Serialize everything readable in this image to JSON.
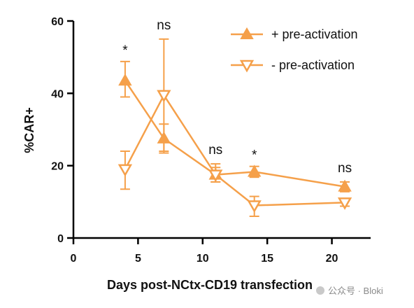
{
  "chart_data": {
    "type": "line",
    "xlabel": "Days post-NCtx-CD19 transfection",
    "ylabel": "%CAR+",
    "xlim": [
      0,
      23
    ],
    "ylim": [
      0,
      60
    ],
    "x_ticks": [
      0,
      5,
      10,
      15,
      20
    ],
    "y_ticks": [
      0,
      20,
      40,
      60
    ],
    "legend_position": "top-right",
    "color": "#F5A04A",
    "series": [
      {
        "name": "+ pre-activation",
        "marker": "triangle-up-filled",
        "x": [
          4,
          7,
          11,
          14,
          21
        ],
        "y": [
          43.5,
          27.5,
          17.5,
          18.3,
          14.2
        ],
        "err_low": [
          39,
          23.5,
          15.5,
          16.8,
          12.8
        ],
        "err_high": [
          48.8,
          31.5,
          20.5,
          19.8,
          15.5
        ]
      },
      {
        "name": "- pre-activation",
        "marker": "triangle-down-open",
        "x": [
          4,
          7,
          11,
          14,
          21
        ],
        "y": [
          19,
          39.5,
          17.5,
          9,
          9.8
        ],
        "err_low": [
          13.5,
          24,
          15.5,
          6,
          8.8
        ],
        "err_high": [
          24,
          55,
          19.5,
          11.5,
          10.8
        ]
      }
    ],
    "annotations": [
      {
        "x": 4,
        "text": "*"
      },
      {
        "x": 7,
        "text": "ns"
      },
      {
        "x": 11,
        "text": "ns"
      },
      {
        "x": 14,
        "text": "*"
      },
      {
        "x": 21,
        "text": "ns"
      }
    ]
  },
  "watermark": "公众号 · Bloki"
}
